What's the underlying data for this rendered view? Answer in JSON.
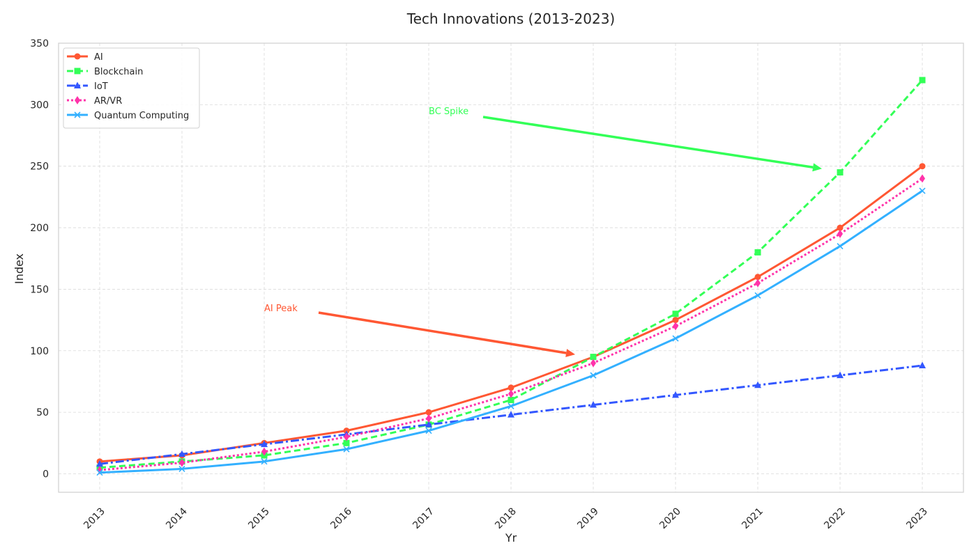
{
  "chart_data": {
    "type": "line",
    "title": "Tech Innovations (2013-2023)",
    "xlabel": "Yr",
    "ylabel": "Index",
    "x": [
      "2013",
      "2014",
      "2015",
      "2016",
      "2017",
      "2018",
      "2019",
      "2020",
      "2021",
      "2022",
      "2023"
    ],
    "ylim": [
      -15,
      350
    ],
    "yticks": [
      0,
      50,
      100,
      150,
      200,
      250,
      300,
      350
    ],
    "grid": true,
    "legend_position": "top-left",
    "series": [
      {
        "name": "AI",
        "color": "#ff5733",
        "dash": "solid",
        "marker": "circle",
        "values": [
          10,
          15,
          25,
          35,
          50,
          70,
          95,
          125,
          160,
          200,
          250
        ]
      },
      {
        "name": "Blockchain",
        "color": "#33ff57",
        "dash": "dashed",
        "marker": "square",
        "values": [
          5,
          10,
          15,
          25,
          40,
          60,
          95,
          130,
          180,
          245,
          320
        ]
      },
      {
        "name": "IoT",
        "color": "#3357ff",
        "dash": "dashdot",
        "marker": "triangle",
        "values": [
          8,
          16,
          24,
          32,
          40,
          48,
          56,
          64,
          72,
          80,
          88
        ]
      },
      {
        "name": "AR/VR",
        "color": "#ff33aa",
        "dash": "dotted",
        "marker": "diamond",
        "values": [
          3,
          9,
          18,
          30,
          45,
          65,
          90,
          120,
          155,
          195,
          240
        ]
      },
      {
        "name": "Quantum Computing",
        "color": "#33b0ff",
        "dash": "solid",
        "marker": "x",
        "values": [
          1,
          4,
          10,
          20,
          35,
          55,
          80,
          110,
          145,
          185,
          230
        ]
      }
    ],
    "annotations": [
      {
        "text": "AI Peak",
        "color": "#ff5733",
        "text_at": {
          "x": "2015",
          "y": 135
        },
        "arrow_to": {
          "x": "2019",
          "y": 97
        },
        "arrow_from": {
          "x": "2016",
          "y": 131
        }
      },
      {
        "text": "BC Spike",
        "color": "#33ff57",
        "text_at": {
          "x": "2017",
          "y": 295
        },
        "arrow_to": {
          "x": "2022",
          "y": 248
        },
        "arrow_from": {
          "x": "2018",
          "y": 290
        }
      }
    ]
  }
}
